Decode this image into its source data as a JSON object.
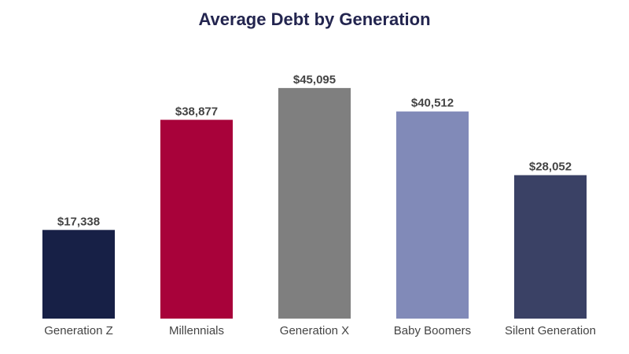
{
  "chart_data": {
    "type": "bar",
    "title": "Average Debt by Generation",
    "categories": [
      "Generation Z",
      "Millennials",
      "Generation X",
      "Baby Boomers",
      "Silent Generation"
    ],
    "values": [
      17338,
      38877,
      45095,
      40512,
      28052
    ],
    "value_labels": [
      "$17,338",
      "$38,877",
      "$45,095",
      "$40,512",
      "$28,052"
    ],
    "colors": [
      "#172046",
      "#a8023a",
      "#7f7f7f",
      "#818ab8",
      "#3a4165"
    ],
    "ylim": [
      0,
      50000
    ]
  }
}
